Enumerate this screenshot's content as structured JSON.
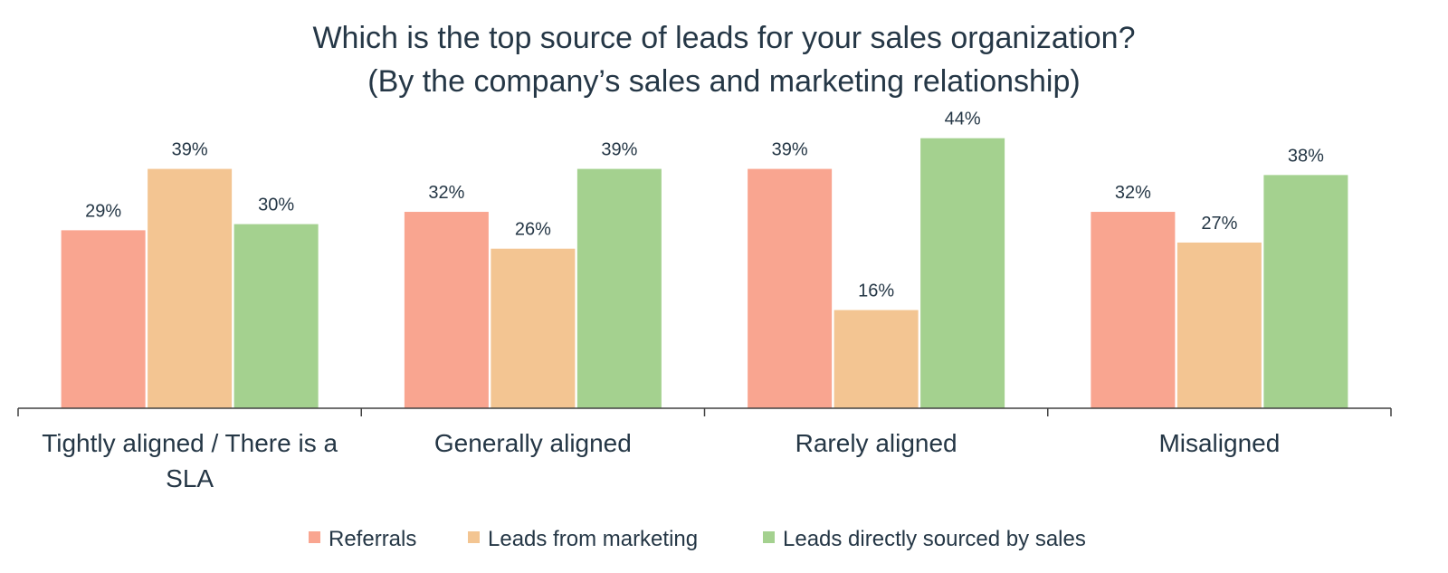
{
  "chart_data": {
    "type": "bar",
    "title": "Which is the top source of leads for your sales organization?",
    "subtitle": "(By the company’s sales and marketing relationship)",
    "categories": [
      [
        "Tightly aligned / There is a",
        "SLA"
      ],
      [
        "Generally aligned"
      ],
      [
        "Rarely aligned"
      ],
      [
        "Misaligned"
      ]
    ],
    "series": [
      {
        "name": "Referrals",
        "color": "#f9a590",
        "values": [
          29,
          32,
          39,
          32
        ]
      },
      {
        "name": "Leads from marketing",
        "color": "#f3c592",
        "values": [
          39,
          26,
          16,
          27
        ]
      },
      {
        "name": "Leads directly sourced by sales",
        "color": "#a4d18f",
        "values": [
          30,
          39,
          44,
          38
        ]
      }
    ],
    "value_suffix": "%",
    "ylim": [
      0,
      50
    ],
    "grid": false,
    "legend_position": "bottom"
  }
}
